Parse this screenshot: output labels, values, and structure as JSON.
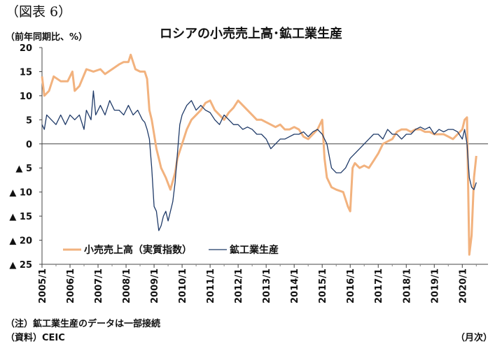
{
  "figure_label": "（図表 6）",
  "title": "ロシアの小売売上高･鉱工業生産",
  "unit_label": "（前年同期比、%）",
  "note": "（注）鉱工業生産のデータは一部接続",
  "source": "（資料）CEIC",
  "x_unit": "（月次）",
  "chart_data": {
    "type": "line",
    "title": "ロシアの小売売上高･鉱工業生産",
    "ylabel": "（前年同期比、%）",
    "xlabel": "（月次）",
    "ylim": [
      -25,
      20
    ],
    "yticks": [
      20,
      15,
      10,
      5,
      0,
      -5,
      -10,
      -15,
      -20,
      -25
    ],
    "ytick_labels": [
      "20",
      "15",
      "10",
      "5",
      "0",
      "▲ 5",
      "▲ 10",
      "▲ 15",
      "▲ 20",
      "▲ 25"
    ],
    "xlim": [
      2005.0,
      2020.917
    ],
    "xticks": [
      2005,
      2006,
      2007,
      2008,
      2009,
      2010,
      2011,
      2012,
      2013,
      2014,
      2015,
      2016,
      2017,
      2018,
      2019,
      2020
    ],
    "xtick_labels": [
      "2005/1",
      "2006/1",
      "2007/1",
      "2008/1",
      "2009/1",
      "2010/1",
      "2011/1",
      "2012/1",
      "2013/1",
      "2014/1",
      "2015/1",
      "2016/1",
      "2017/1",
      "2018/1",
      "2019/1",
      "2020/1"
    ],
    "grid": false,
    "legend_position": "lower-left",
    "series": [
      {
        "name": "小売売上高（実質指数）",
        "color": "#F2B27E",
        "points": [
          [
            "2005/1",
            14
          ],
          [
            "2005/2",
            10
          ],
          [
            "2005/4",
            11
          ],
          [
            "2005/6",
            14
          ],
          [
            "2005/9",
            13
          ],
          [
            "2005/12",
            13
          ],
          [
            "2006/2",
            15
          ],
          [
            "2006/3",
            11
          ],
          [
            "2006/5",
            12
          ],
          [
            "2006/8",
            15.5
          ],
          [
            "2006/11",
            15
          ],
          [
            "2007/2",
            15.5
          ],
          [
            "2007/4",
            14.5
          ],
          [
            "2007/7",
            15.5
          ],
          [
            "2007/10",
            16.5
          ],
          [
            "2007/12",
            17
          ],
          [
            "2008/2",
            17
          ],
          [
            "2008/3",
            18.5
          ],
          [
            "2008/5",
            15.5
          ],
          [
            "2008/7",
            15
          ],
          [
            "2008/9",
            15
          ],
          [
            "2008/10",
            13.5
          ],
          [
            "2008/11",
            7
          ],
          [
            "2008/12",
            5
          ],
          [
            "2009/1",
            2
          ],
          [
            "2009/2",
            -1
          ],
          [
            "2009/3",
            -3
          ],
          [
            "2009/4",
            -5
          ],
          [
            "2009/6",
            -7
          ],
          [
            "2009/8",
            -9.5
          ],
          [
            "2009/10",
            -6
          ],
          [
            "2009/11",
            -3
          ],
          [
            "2010/1",
            0
          ],
          [
            "2010/3",
            3
          ],
          [
            "2010/5",
            5
          ],
          [
            "2010/7",
            6
          ],
          [
            "2010/9",
            7
          ],
          [
            "2010/11",
            8.5
          ],
          [
            "2011/1",
            9
          ],
          [
            "2011/3",
            7
          ],
          [
            "2011/5",
            6
          ],
          [
            "2011/7",
            5
          ],
          [
            "2011/9",
            6.5
          ],
          [
            "2011/11",
            7.5
          ],
          [
            "2012/1",
            9
          ],
          [
            "2012/3",
            8
          ],
          [
            "2012/5",
            7
          ],
          [
            "2012/7",
            6
          ],
          [
            "2012/9",
            5
          ],
          [
            "2012/11",
            5
          ],
          [
            "2013/1",
            4.5
          ],
          [
            "2013/3",
            4
          ],
          [
            "2013/5",
            3.5
          ],
          [
            "2013/7",
            4
          ],
          [
            "2013/9",
            3
          ],
          [
            "2013/11",
            3
          ],
          [
            "2014/1",
            3.5
          ],
          [
            "2014/3",
            3
          ],
          [
            "2014/5",
            1.5
          ],
          [
            "2014/7",
            1
          ],
          [
            "2014/9",
            2
          ],
          [
            "2014/11",
            3
          ],
          [
            "2015/1",
            5
          ],
          [
            "2015/2",
            -3
          ],
          [
            "2015/3",
            -7
          ],
          [
            "2015/5",
            -9
          ],
          [
            "2015/7",
            -9.5
          ],
          [
            "2015/10",
            -10
          ],
          [
            "2015/12",
            -13
          ],
          [
            "2016/1",
            -14
          ],
          [
            "2016/2",
            -5
          ],
          [
            "2016/3",
            -4
          ],
          [
            "2016/5",
            -5
          ],
          [
            "2016/7",
            -4.5
          ],
          [
            "2016/9",
            -5
          ],
          [
            "2016/11",
            -3.5
          ],
          [
            "2017/1",
            -2
          ],
          [
            "2017/3",
            0
          ],
          [
            "2017/5",
            0.5
          ],
          [
            "2017/7",
            1
          ],
          [
            "2017/9",
            2.5
          ],
          [
            "2017/11",
            3
          ],
          [
            "2018/1",
            3
          ],
          [
            "2018/3",
            2.5
          ],
          [
            "2018/5",
            3
          ],
          [
            "2018/7",
            3
          ],
          [
            "2018/9",
            2.5
          ],
          [
            "2018/11",
            2.5
          ],
          [
            "2019/1",
            2
          ],
          [
            "2019/3",
            2
          ],
          [
            "2019/5",
            2
          ],
          [
            "2019/7",
            1.5
          ],
          [
            "2019/9",
            1
          ],
          [
            "2019/11",
            2
          ],
          [
            "2020/1",
            3
          ],
          [
            "2020/2",
            5
          ],
          [
            "2020/3",
            5.5
          ],
          [
            "2020/4",
            -23
          ],
          [
            "2020/5",
            -19
          ],
          [
            "2020/6",
            -7
          ],
          [
            "2020/7",
            -2.5
          ]
        ]
      },
      {
        "name": "鉱工業生産",
        "color": "#1F3A68",
        "points": [
          [
            "2005/1",
            4
          ],
          [
            "2005/2",
            3
          ],
          [
            "2005/3",
            6
          ],
          [
            "2005/5",
            5
          ],
          [
            "2005/7",
            4
          ],
          [
            "2005/9",
            6
          ],
          [
            "2005/11",
            4
          ],
          [
            "2006/1",
            6
          ],
          [
            "2006/3",
            5
          ],
          [
            "2006/5",
            6
          ],
          [
            "2006/7",
            3
          ],
          [
            "2006/8",
            7
          ],
          [
            "2006/10",
            5
          ],
          [
            "2006/11",
            11
          ],
          [
            "2006/12",
            6
          ],
          [
            "2007/2",
            8
          ],
          [
            "2007/4",
            6
          ],
          [
            "2007/6",
            9
          ],
          [
            "2007/8",
            7
          ],
          [
            "2007/10",
            7
          ],
          [
            "2007/12",
            6
          ],
          [
            "2008/2",
            8
          ],
          [
            "2008/4",
            6
          ],
          [
            "2008/6",
            7
          ],
          [
            "2008/8",
            5
          ],
          [
            "2008/9",
            4.5
          ],
          [
            "2008/10",
            3
          ],
          [
            "2008/11",
            1
          ],
          [
            "2008/12",
            -5
          ],
          [
            "2009/1",
            -13
          ],
          [
            "2009/2",
            -14
          ],
          [
            "2009/3",
            -18
          ],
          [
            "2009/4",
            -17
          ],
          [
            "2009/5",
            -15
          ],
          [
            "2009/6",
            -14
          ],
          [
            "2009/7",
            -16
          ],
          [
            "2009/9",
            -12
          ],
          [
            "2009/10",
            -8
          ],
          [
            "2009/11",
            -2
          ],
          [
            "2009/12",
            4
          ],
          [
            "2010/1",
            6
          ],
          [
            "2010/3",
            8
          ],
          [
            "2010/5",
            9
          ],
          [
            "2010/7",
            7
          ],
          [
            "2010/9",
            8
          ],
          [
            "2010/11",
            7
          ],
          [
            "2011/1",
            6.5
          ],
          [
            "2011/3",
            5
          ],
          [
            "2011/5",
            4
          ],
          [
            "2011/7",
            6
          ],
          [
            "2011/9",
            5
          ],
          [
            "2011/11",
            4
          ],
          [
            "2012/1",
            4
          ],
          [
            "2012/3",
            3
          ],
          [
            "2012/5",
            3.5
          ],
          [
            "2012/7",
            3
          ],
          [
            "2012/9",
            2
          ],
          [
            "2012/11",
            2
          ],
          [
            "2013/1",
            1
          ],
          [
            "2013/3",
            -1
          ],
          [
            "2013/5",
            0
          ],
          [
            "2013/7",
            1
          ],
          [
            "2013/9",
            1
          ],
          [
            "2013/11",
            1.5
          ],
          [
            "2014/1",
            2
          ],
          [
            "2014/3",
            2
          ],
          [
            "2014/5",
            2.5
          ],
          [
            "2014/7",
            1.5
          ],
          [
            "2014/9",
            2.5
          ],
          [
            "2014/11",
            3
          ],
          [
            "2015/1",
            2
          ],
          [
            "2015/3",
            0
          ],
          [
            "2015/5",
            -5
          ],
          [
            "2015/7",
            -6
          ],
          [
            "2015/9",
            -6
          ],
          [
            "2015/11",
            -5
          ],
          [
            "2016/1",
            -3
          ],
          [
            "2016/3",
            -2
          ],
          [
            "2016/5",
            -1
          ],
          [
            "2016/7",
            0
          ],
          [
            "2016/9",
            1
          ],
          [
            "2016/11",
            2
          ],
          [
            "2017/1",
            2
          ],
          [
            "2017/3",
            1
          ],
          [
            "2017/5",
            3
          ],
          [
            "2017/7",
            2
          ],
          [
            "2017/9",
            2
          ],
          [
            "2017/11",
            1
          ],
          [
            "2018/1",
            2
          ],
          [
            "2018/3",
            2
          ],
          [
            "2018/5",
            3
          ],
          [
            "2018/7",
            3.5
          ],
          [
            "2018/9",
            3
          ],
          [
            "2018/11",
            3.5
          ],
          [
            "2019/1",
            2
          ],
          [
            "2019/3",
            3
          ],
          [
            "2019/5",
            2.5
          ],
          [
            "2019/7",
            3
          ],
          [
            "2019/9",
            3
          ],
          [
            "2019/11",
            2.5
          ],
          [
            "2020/1",
            1
          ],
          [
            "2020/2",
            3
          ],
          [
            "2020/3",
            0
          ],
          [
            "2020/4",
            -7
          ],
          [
            "2020/5",
            -9
          ],
          [
            "2020/6",
            -9.5
          ],
          [
            "2020/7",
            -8
          ]
        ]
      }
    ]
  }
}
